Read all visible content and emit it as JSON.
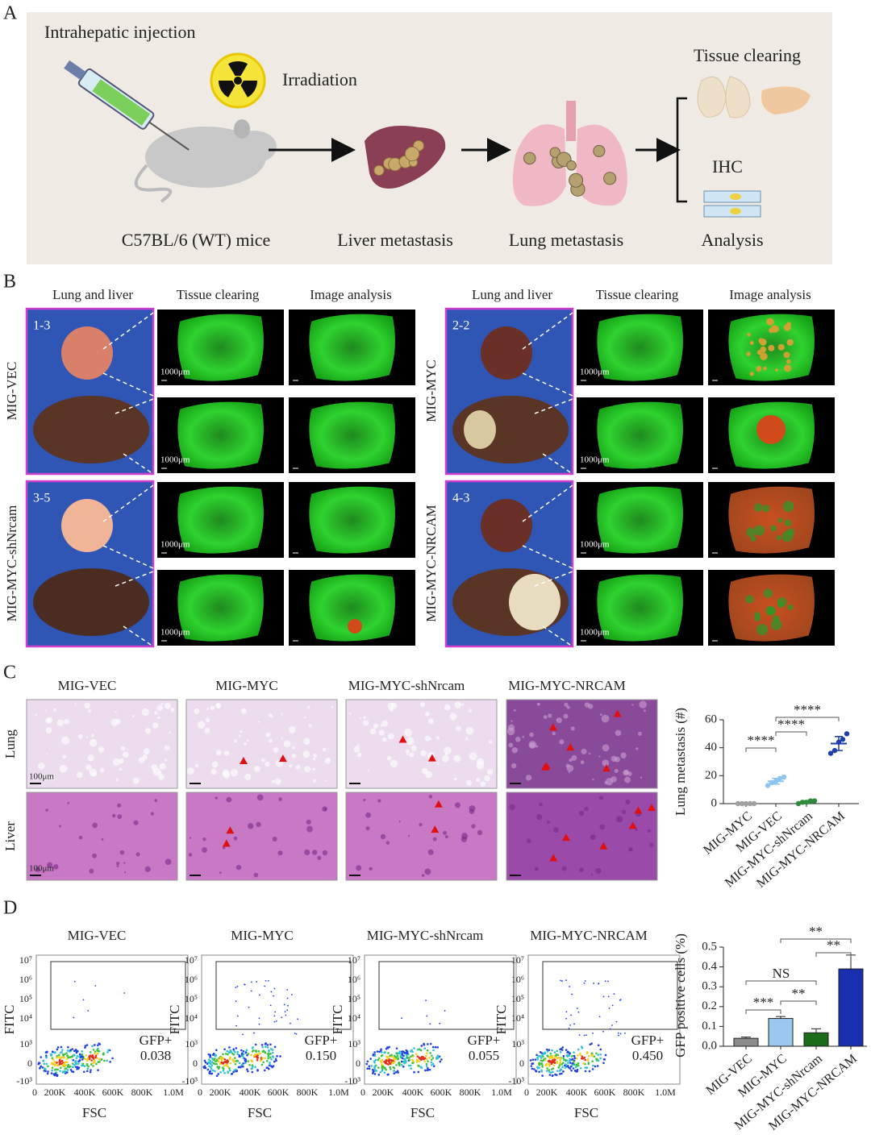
{
  "panel_a": {
    "label": "A",
    "injection": "Intrahepatic injection",
    "irradiation": "Irradiation",
    "tissue_clearing": "Tissue clearing",
    "ihc": "IHC",
    "steps": [
      "C57BL/6 (WT) mice",
      "Liver metastasis",
      "Lung metastasis",
      "Analysis"
    ]
  },
  "panel_b": {
    "label": "B",
    "columns": [
      "Lung and liver",
      "Tissue clearing",
      "Image analysis"
    ],
    "groups": [
      {
        "name": "MIG-VEC",
        "id": "1-3"
      },
      {
        "name": "MIG-MYC",
        "id": "2-2"
      },
      {
        "name": "MIG-MYC-shNrcam",
        "id": "3-5"
      },
      {
        "name": "MIG-MYC-NRCAM",
        "id": "4-3"
      }
    ],
    "scale_bar": "1000μm"
  },
  "panel_c": {
    "label": "C",
    "columns": [
      "MIG-VEC",
      "MIG-MYC",
      "MIG-MYC-shNrcam",
      "MIG-MYC-NRCAM"
    ],
    "rows": [
      "Lung",
      "Liver"
    ],
    "scale_bar": "100μm"
  },
  "panel_d": {
    "label": "D",
    "columns": [
      "MIG-VEC",
      "MIG-MYC",
      "MIG-MYC-shNrcam",
      "MIG-MYC-NRCAM"
    ],
    "y_axis": "FITC",
    "x_axis": "FSC",
    "y_ticks": [
      "10⁷",
      "10⁶",
      "10⁵",
      "10⁴",
      "10³",
      "0",
      "-10³"
    ],
    "x_ticks": [
      "0",
      "200K",
      "400K",
      "600K",
      "800K",
      "1.0M"
    ],
    "gate": "GFP+",
    "gate_values": [
      "0.038",
      "0.150",
      "0.055",
      "0.450"
    ]
  },
  "chart_data": [
    {
      "type": "dot",
      "y_label": "Lung metastasis (#)",
      "categories": [
        "MIG-MYC",
        "MIG-VEC",
        "MIG-MYC-shNrcam",
        "MIG-MYC-NRCAM"
      ],
      "values": [
        [
          0,
          0,
          0,
          0,
          0
        ],
        [
          13,
          15,
          16,
          18,
          19
        ],
        [
          0,
          1,
          1,
          2,
          2
        ],
        [
          36,
          38,
          44,
          46,
          50
        ]
      ],
      "means": [
        0,
        16,
        1,
        43
      ],
      "errors": [
        0,
        2,
        1,
        5
      ],
      "colors": [
        "#a0a0a0",
        "#8ec5f0",
        "#2e8b3e",
        "#1f3fa8"
      ],
      "ylim": [
        0,
        60
      ],
      "yticks": [
        0,
        20,
        40,
        60
      ],
      "comparisons": [
        {
          "groups": [
            1,
            3
          ],
          "label": "****"
        },
        {
          "groups": [
            1,
            2
          ],
          "label": "****"
        },
        {
          "groups": [
            0,
            1
          ],
          "label": "****"
        }
      ]
    },
    {
      "type": "bar",
      "y_label": "GFP positive cells (%)",
      "categories": [
        "MIG-VEC",
        "MIG-MYC",
        "MIG-MYC-shNrcam",
        "MIG-MYC-NRCAM"
      ],
      "values": [
        0.04,
        0.14,
        0.068,
        0.39
      ],
      "errors": [
        0.006,
        0.01,
        0.02,
        0.07
      ],
      "colors": [
        "#8c8c8c",
        "#9cc8f0",
        "#1a6b1a",
        "#1a2fb0"
      ],
      "ylim": [
        0,
        0.5
      ],
      "yticks": [
        {
          "value": 0,
          "label": "0.0"
        },
        0.1,
        0.2,
        0.3,
        0.4,
        0.5
      ],
      "comparisons": [
        {
          "groups": [
            1,
            3
          ],
          "label": "**"
        },
        {
          "groups": [
            2,
            3
          ],
          "label": "**"
        },
        {
          "groups": [
            0,
            2
          ],
          "label": "NS"
        },
        {
          "groups": [
            1,
            2
          ],
          "label": "**"
        },
        {
          "groups": [
            0,
            1
          ],
          "label": "***"
        }
      ]
    }
  ]
}
